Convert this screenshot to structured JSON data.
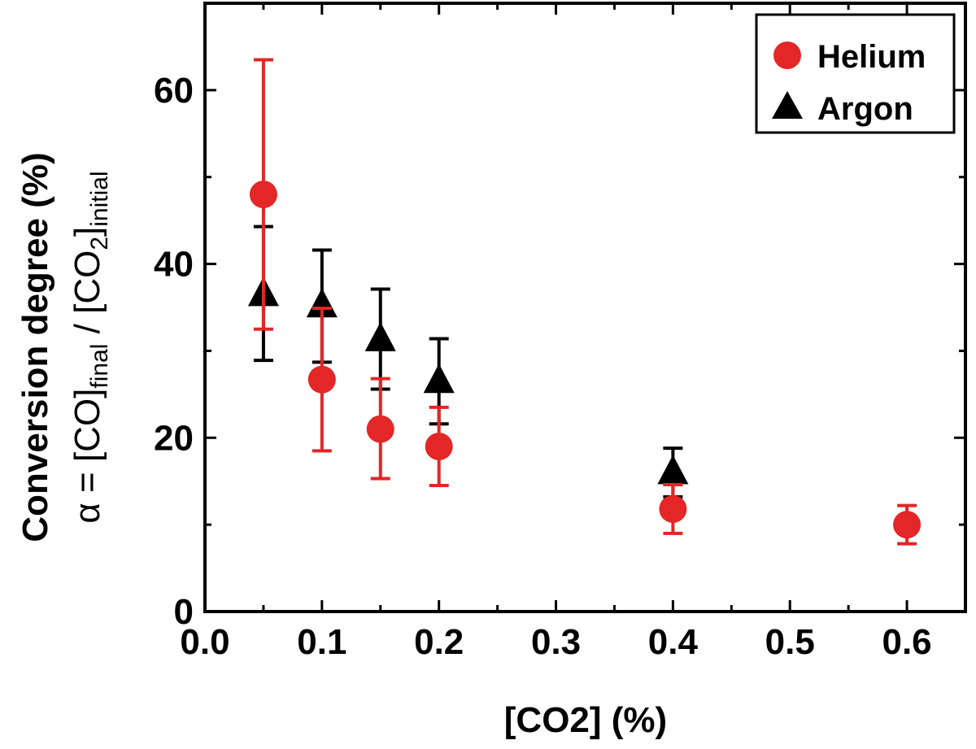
{
  "chart_data": {
    "type": "scatter",
    "xlabel": "[CO2] (%)",
    "ylabel": {
      "line1": "Conversion degree (%)",
      "line2": {
        "prefix": "α = [CO]",
        "sub1": "final",
        "middle": " / [CO",
        "sub2": "2",
        "bracket": "]",
        "sub3": "initial"
      }
    },
    "xlim": [
      0.0,
      0.65
    ],
    "ylim": [
      0,
      70
    ],
    "x_ticks": [
      0.0,
      0.1,
      0.2,
      0.3,
      0.4,
      0.5,
      0.6
    ],
    "x_tick_labels": [
      "0.0",
      "0.1",
      "0.2",
      "0.3",
      "0.4",
      "0.5",
      "0.6"
    ],
    "y_ticks": [
      0,
      20,
      40,
      60
    ],
    "y_tick_labels": [
      "0",
      "20",
      "40",
      "60"
    ],
    "y_minor_ticks": [
      10,
      30,
      50,
      70
    ],
    "grid": false,
    "legend_position": "top-right",
    "series": [
      {
        "name": "Helium",
        "marker": "circle",
        "color": "#e32626",
        "points": [
          {
            "x": 0.05,
            "y": 48,
            "err_low": 15.5,
            "err_high": 15.5
          },
          {
            "x": 0.1,
            "y": 26.7,
            "err_low": 8.2,
            "err_high": 8.2
          },
          {
            "x": 0.15,
            "y": 21,
            "err_low": 5.7,
            "err_high": 5.8
          },
          {
            "x": 0.2,
            "y": 19,
            "err_low": 4.5,
            "err_high": 4.5
          },
          {
            "x": 0.4,
            "y": 11.8,
            "err_low": 2.8,
            "err_high": 2.8
          },
          {
            "x": 0.6,
            "y": 10,
            "err_low": 2.2,
            "err_high": 2.2
          }
        ]
      },
      {
        "name": "Argon",
        "marker": "triangle",
        "color": "#000000",
        "points": [
          {
            "x": 0.05,
            "y": 36.5,
            "err_low": 7.6,
            "err_high": 7.8
          },
          {
            "x": 0.1,
            "y": 35.2,
            "err_low": 6.5,
            "err_high": 6.4
          },
          {
            "x": 0.15,
            "y": 31.3,
            "err_low": 5.7,
            "err_high": 5.8
          },
          {
            "x": 0.2,
            "y": 26.5,
            "err_low": 4.9,
            "err_high": 4.9
          },
          {
            "x": 0.4,
            "y": 16,
            "err_low": 2.8,
            "err_high": 2.8
          }
        ]
      }
    ]
  }
}
